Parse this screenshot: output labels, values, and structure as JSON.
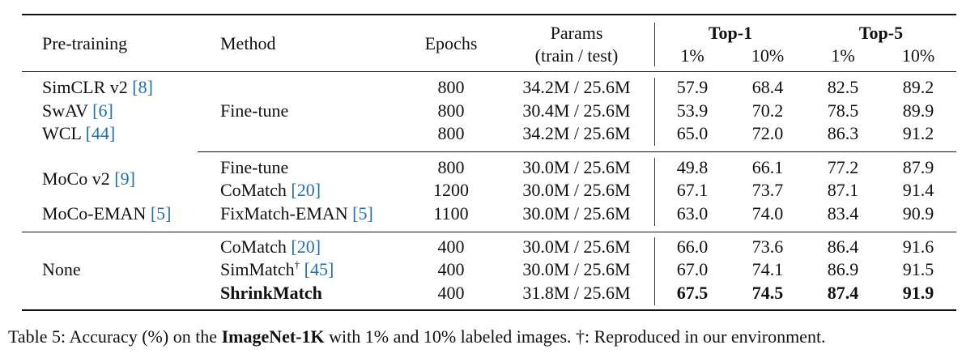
{
  "header": {
    "pretraining": "Pre-training",
    "method": "Method",
    "epochs": "Epochs",
    "params_line1": "Params",
    "params_line2": "(train / test)",
    "top1": "Top-1",
    "top5": "Top-5",
    "pct1": "1%",
    "pct10": "10%"
  },
  "groups": [
    {
      "pretraining_labels": [
        "SimCLR v2 ",
        "SwAV ",
        "WCL "
      ],
      "pretraining_refs": [
        "[8]",
        "[6]",
        "[44]"
      ],
      "method": "Fine-tune",
      "rows": [
        {
          "epochs": "800",
          "params": "34.2M / 25.6M",
          "t1_1": "57.9",
          "t1_10": "68.4",
          "t5_1": "82.5",
          "t5_10": "89.2"
        },
        {
          "epochs": "800",
          "params": "30.4M / 25.6M",
          "t1_1": "53.9",
          "t1_10": "70.2",
          "t5_1": "78.5",
          "t5_10": "89.9"
        },
        {
          "epochs": "800",
          "params": "34.2M / 25.6M",
          "t1_1": "65.0",
          "t1_10": "72.0",
          "t5_1": "86.3",
          "t5_10": "91.2"
        }
      ]
    },
    {
      "pretraining_labels": [
        "MoCo v2 ",
        "MoCo-EMAN "
      ],
      "pretraining_refs": [
        "[9]",
        "[5]"
      ],
      "methods": [
        "Fine-tune",
        "CoMatch ",
        "FixMatch-EMAN "
      ],
      "method_refs": [
        "",
        "[20]",
        "[5]"
      ],
      "rows": [
        {
          "epochs": "800",
          "params": "30.0M / 25.6M",
          "t1_1": "49.8",
          "t1_10": "66.1",
          "t5_1": "77.2",
          "t5_10": "87.9"
        },
        {
          "epochs": "1200",
          "params": "30.0M / 25.6M",
          "t1_1": "67.1",
          "t1_10": "73.7",
          "t5_1": "87.1",
          "t5_10": "91.4"
        },
        {
          "epochs": "1100",
          "params": "30.0M / 25.6M",
          "t1_1": "63.0",
          "t1_10": "74.0",
          "t5_1": "83.4",
          "t5_10": "90.9"
        }
      ]
    },
    {
      "pretraining_label": "None",
      "methods": [
        "CoMatch ",
        "SimMatch",
        "ShrinkMatch"
      ],
      "method_refs": [
        "[20]",
        "[45]",
        ""
      ],
      "simmatch_sup": "†",
      "rows": [
        {
          "epochs": "400",
          "params": "30.0M / 25.6M",
          "t1_1": "66.0",
          "t1_10": "73.6",
          "t5_1": "86.4",
          "t5_10": "91.6"
        },
        {
          "epochs": "400",
          "params": "30.0M / 25.6M",
          "t1_1": "67.0",
          "t1_10": "74.1",
          "t5_1": "86.9",
          "t5_10": "91.5"
        },
        {
          "epochs": "400",
          "params": "31.8M / 25.6M",
          "t1_1": "67.5",
          "t1_10": "74.5",
          "t5_1": "87.4",
          "t5_10": "91.9"
        }
      ]
    }
  ],
  "caption": {
    "prefix": "Table 5: Accuracy (%) on the ",
    "bold": "ImageNet-1K",
    "suffix": " with 1% and 10% labeled images. †: Reproduced in our environment."
  }
}
